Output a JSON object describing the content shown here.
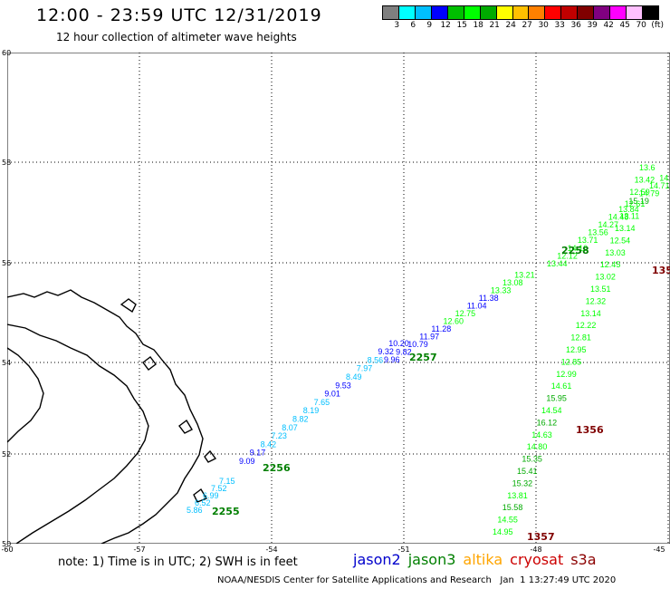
{
  "header": {
    "title": "12:00 - 23:59 UTC 12/31/2019",
    "subtitle": "12 hour collection of altimeter wave heights"
  },
  "colorbar": {
    "colors": [
      "#7f7f7f",
      "#00ffff",
      "#00bfff",
      "#0000ff",
      "#00bf00",
      "#00ff00",
      "#00aa00",
      "#ffff00",
      "#ffc000",
      "#ff8000",
      "#ff0000",
      "#c00000",
      "#800000",
      "#800080",
      "#ff00ff",
      "#ffc0ff",
      "#000000"
    ],
    "labels": [
      "3",
      "6",
      "9",
      "12",
      "15",
      "18",
      "21",
      "24",
      "27",
      "30",
      "33",
      "36",
      "39",
      "42",
      "45",
      "70",
      "(ft)"
    ]
  },
  "axes": {
    "lat_ticks": [
      "60",
      "58",
      "56",
      "54",
      "52",
      "50"
    ],
    "lon_ticks": [
      "-60",
      "-57",
      "-54",
      "-51",
      "-48",
      "-45"
    ]
  },
  "tracks": [
    {
      "satellite": "jason3",
      "time_label": "2255",
      "time_color": "#007f00",
      "points": [
        {
          "v": "5.86",
          "c": "#00bfff"
        },
        {
          "v": "6.52",
          "c": "#00bfff"
        },
        {
          "v": "6.99",
          "c": "#00bfff"
        },
        {
          "v": "7.52",
          "c": "#00bfff"
        },
        {
          "v": "7.15",
          "c": "#00bfff"
        }
      ]
    },
    {
      "satellite": "jason3",
      "time_label": "2256",
      "time_color": "#007f00",
      "points": [
        {
          "v": "9.09",
          "c": "#0000ff"
        },
        {
          "v": "9.17",
          "c": "#0000ff"
        },
        {
          "v": "8.42",
          "c": "#00bfff"
        },
        {
          "v": "7.23",
          "c": "#00bfff"
        },
        {
          "v": "8.07",
          "c": "#00bfff"
        },
        {
          "v": "8.82",
          "c": "#00bfff"
        },
        {
          "v": "8.19",
          "c": "#00bfff"
        },
        {
          "v": "7.65",
          "c": "#00bfff"
        },
        {
          "v": "9.01",
          "c": "#0000ff"
        },
        {
          "v": "9.53",
          "c": "#0000ff"
        },
        {
          "v": "8.49",
          "c": "#00bfff"
        },
        {
          "v": "7.97",
          "c": "#00bfff"
        },
        {
          "v": "8.56",
          "c": "#00bfff"
        },
        {
          "v": "9.32",
          "c": "#0000ff"
        },
        {
          "v": "10.20",
          "c": "#0000ff"
        }
      ]
    },
    {
      "satellite": "jason3",
      "time_label": "2257",
      "time_color": "#007f00",
      "points": [
        {
          "v": "9.96",
          "c": "#0000ff"
        },
        {
          "v": "9.82",
          "c": "#0000ff"
        },
        {
          "v": "10.79",
          "c": "#0000ff"
        },
        {
          "v": "11.97",
          "c": "#0000ff"
        },
        {
          "v": "11.28",
          "c": "#0000ff"
        },
        {
          "v": "12.60",
          "c": "#00ff00"
        },
        {
          "v": "12.75",
          "c": "#00ff00"
        },
        {
          "v": "11.04",
          "c": "#0000ff"
        },
        {
          "v": "11.38",
          "c": "#0000ff"
        },
        {
          "v": "13.33",
          "c": "#00ff00"
        },
        {
          "v": "13.08",
          "c": "#00ff00"
        },
        {
          "v": "13.21",
          "c": "#00ff00"
        }
      ]
    },
    {
      "satellite": "jason3",
      "time_label": "2258",
      "time_color": "#007f00",
      "points": [
        {
          "v": "13.44",
          "c": "#00ff00"
        },
        {
          "v": "12.12",
          "c": "#00ff00"
        },
        {
          "v": "14.10",
          "c": "#00ff00"
        },
        {
          "v": "13.71",
          "c": "#00ff00"
        },
        {
          "v": "13.56",
          "c": "#00ff00"
        },
        {
          "v": "14.27",
          "c": "#00ff00"
        },
        {
          "v": "14.48",
          "c": "#00ff00"
        },
        {
          "v": "13.84",
          "c": "#00ff00"
        },
        {
          "v": "15.19",
          "c": "#00aa00"
        },
        {
          "v": "14.79",
          "c": "#00ff00"
        },
        {
          "v": "14.71",
          "c": "#00ff00"
        },
        {
          "v": "14.8",
          "c": "#00ff00"
        },
        {
          "v": "16",
          "c": "#00aa00"
        }
      ]
    },
    {
      "satellite": "cryosat",
      "time_label": "1356",
      "time_color": "#800000",
      "points": [
        {
          "v": "14.95",
          "c": "#00ff00"
        },
        {
          "v": "14.55",
          "c": "#00ff00"
        },
        {
          "v": "15.58",
          "c": "#00aa00"
        },
        {
          "v": "13.81",
          "c": "#00ff00"
        },
        {
          "v": "15.32",
          "c": "#00aa00"
        },
        {
          "v": "15.41",
          "c": "#00aa00"
        },
        {
          "v": "15.35",
          "c": "#00aa00"
        },
        {
          "v": "14.80",
          "c": "#00ff00"
        },
        {
          "v": "14.63",
          "c": "#00ff00"
        },
        {
          "v": "16.12",
          "c": "#00aa00"
        },
        {
          "v": "14.54",
          "c": "#00ff00"
        },
        {
          "v": "15.95",
          "c": "#00aa00"
        },
        {
          "v": "14.61",
          "c": "#00ff00"
        },
        {
          "v": "12.99",
          "c": "#00ff00"
        },
        {
          "v": "12.85",
          "c": "#00ff00"
        },
        {
          "v": "12.95",
          "c": "#00ff00"
        },
        {
          "v": "12.81",
          "c": "#00ff00"
        },
        {
          "v": "12.22",
          "c": "#00ff00"
        },
        {
          "v": "13.14",
          "c": "#00ff00"
        },
        {
          "v": "12.32",
          "c": "#00ff00"
        },
        {
          "v": "13.51",
          "c": "#00ff00"
        },
        {
          "v": "13.02",
          "c": "#00ff00"
        },
        {
          "v": "12.45",
          "c": "#00ff00"
        },
        {
          "v": "13.03",
          "c": "#00ff00"
        },
        {
          "v": "12.54",
          "c": "#00ff00"
        },
        {
          "v": "13.14",
          "c": "#00ff00"
        },
        {
          "v": "13.11",
          "c": "#00ff00"
        },
        {
          "v": "12.61",
          "c": "#00ff00"
        },
        {
          "v": "12.59",
          "c": "#00ff00"
        },
        {
          "v": "13.42",
          "c": "#00ff00"
        },
        {
          "v": "13.6",
          "c": "#00ff00"
        }
      ]
    }
  ],
  "extra_time_labels": [
    {
      "text": "1357",
      "color": "#800000"
    },
    {
      "text": "135",
      "color": "#800000"
    }
  ],
  "note": "note:  1) Time is in UTC;  2) SWH is in feet",
  "legend": [
    {
      "name": "jason2",
      "color": "#0000cc"
    },
    {
      "name": "jason3",
      "color": "#007f00"
    },
    {
      "name": "altika",
      "color": "#ffa500"
    },
    {
      "name": "cryosat",
      "color": "#cc0000"
    },
    {
      "name": "s3a",
      "color": "#8b0000"
    }
  ],
  "credit": "NOAA/NESDIS Center for Satellite Applications and Research   Jan  1 13:27:49 UTC 2020"
}
